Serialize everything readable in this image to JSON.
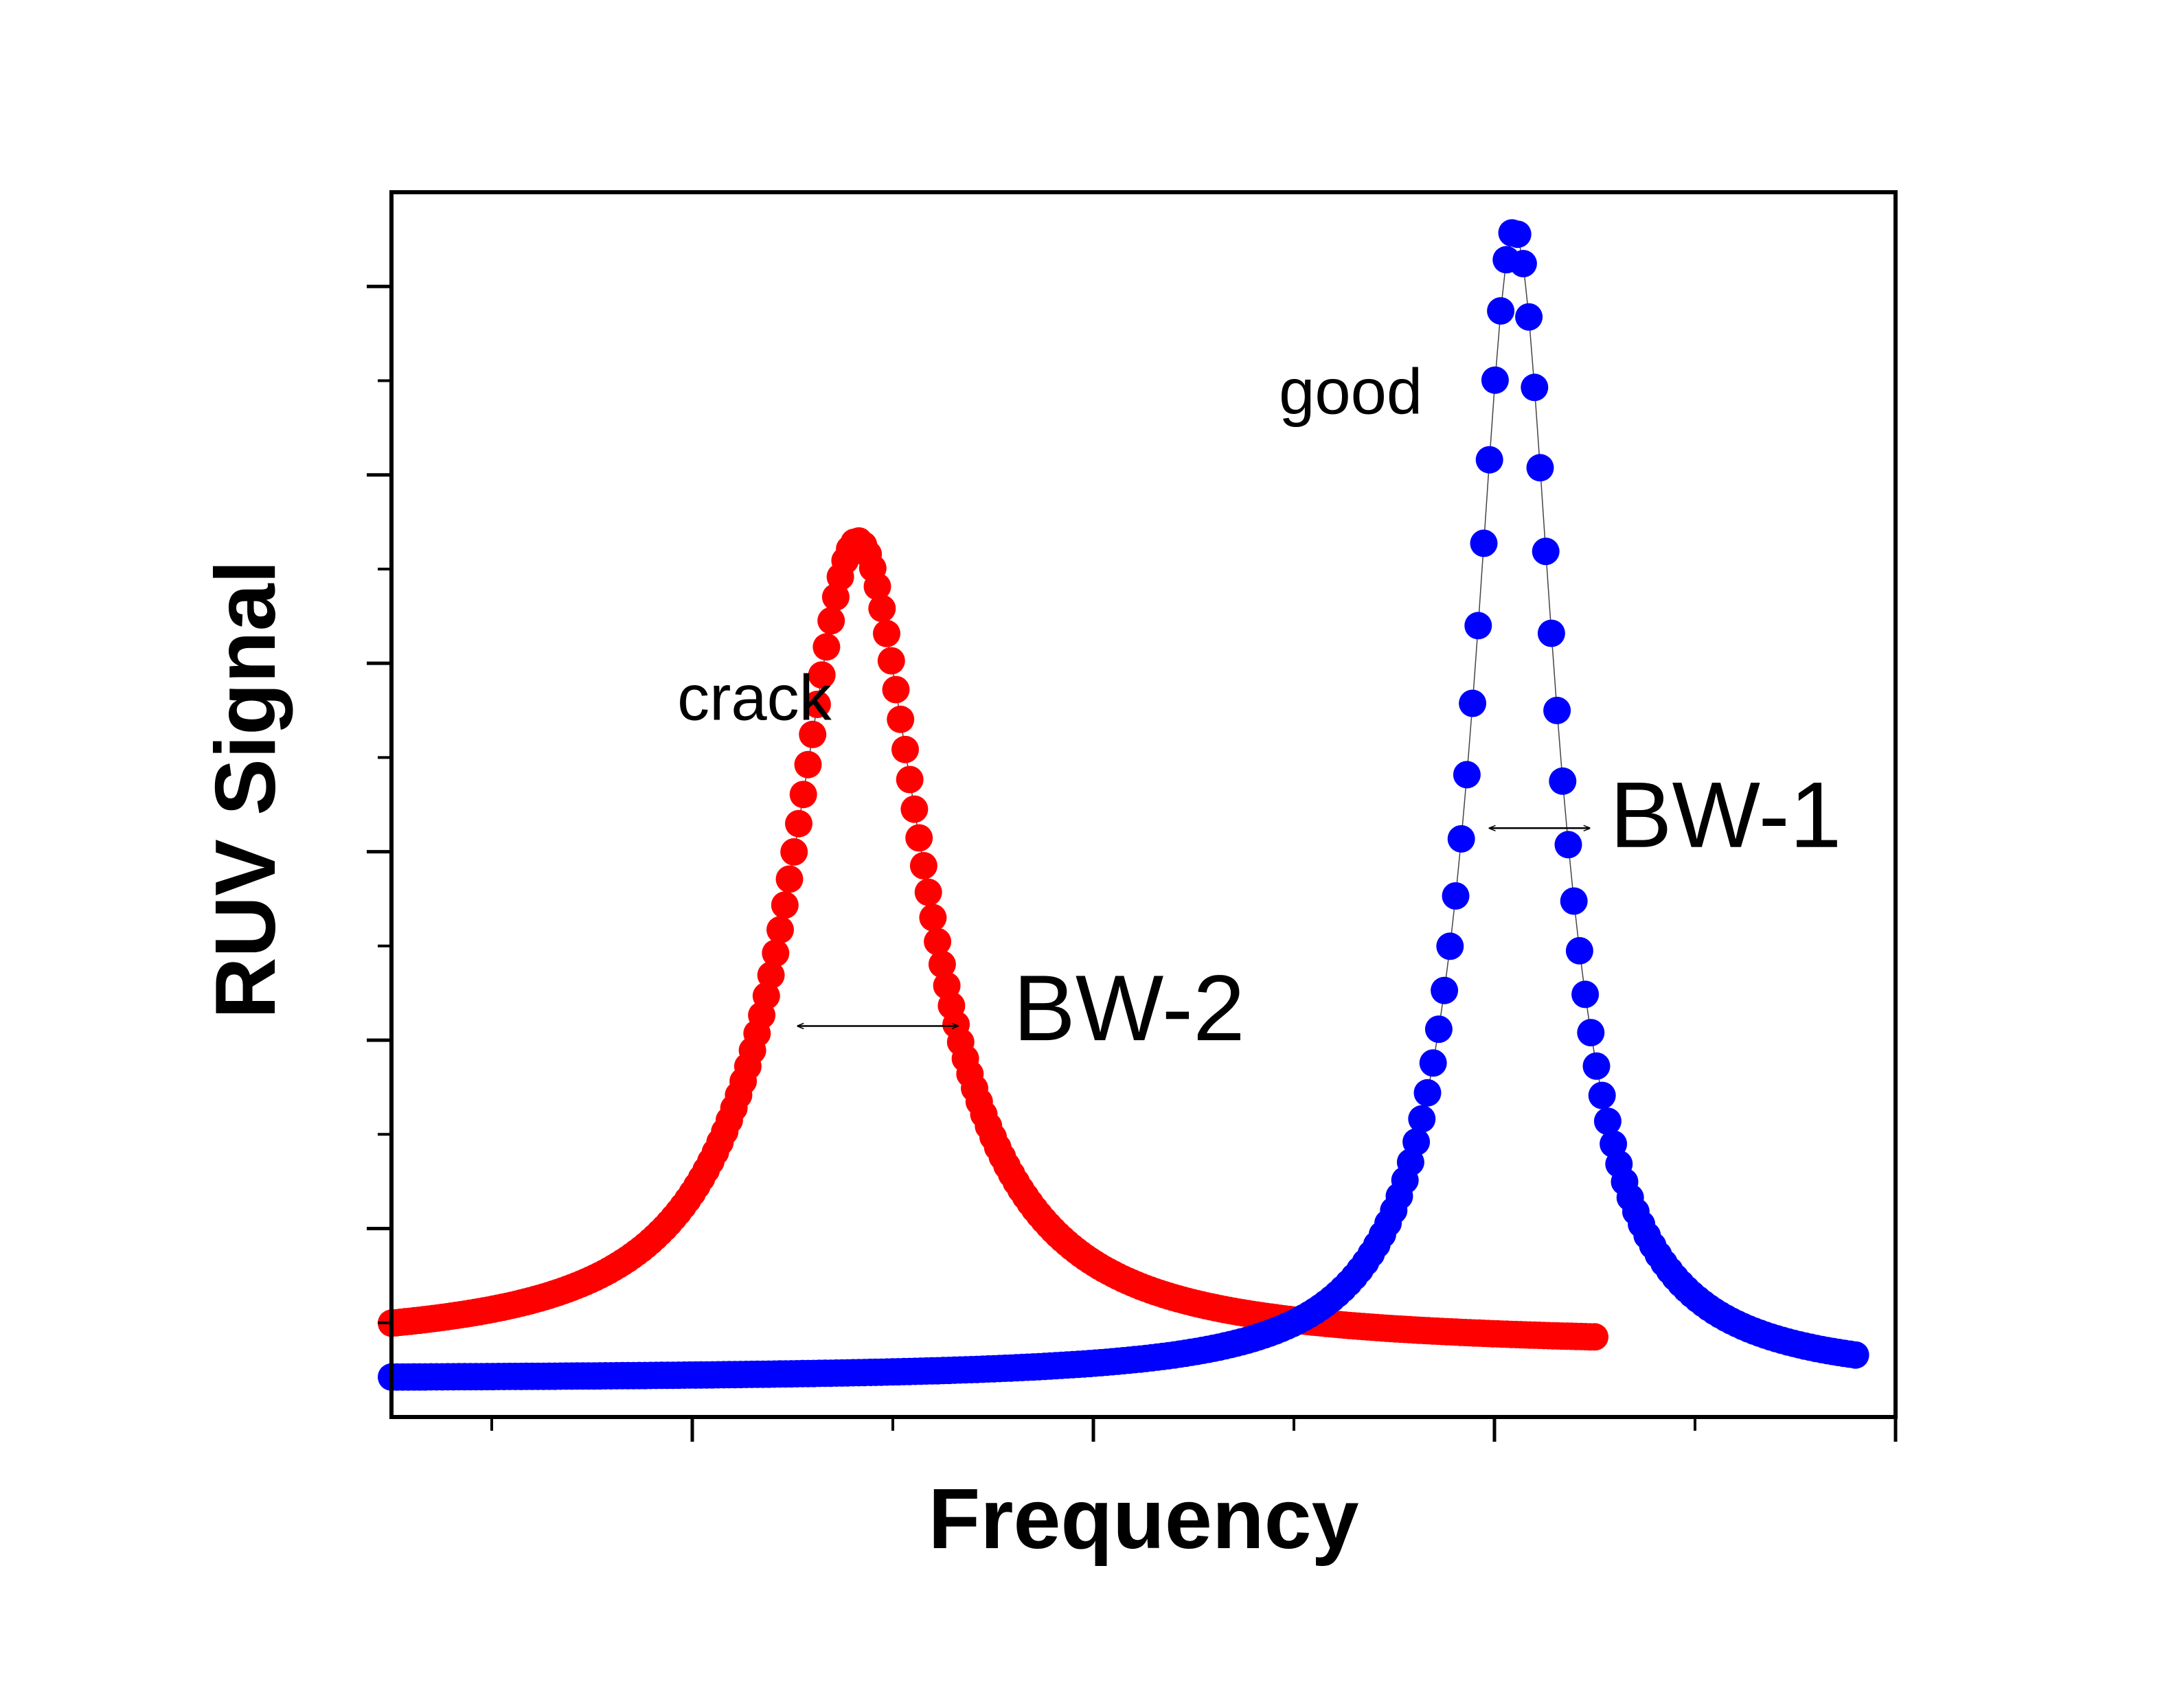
{
  "chart_data": {
    "type": "scatter",
    "xlabel": "Frequency",
    "ylabel": "RUV Signal",
    "xlim": [
      0,
      15
    ],
    "ylim": [
      0,
      13
    ],
    "grid": false,
    "legend": "none",
    "x_ticks": {
      "major": [
        3,
        7,
        11,
        15
      ],
      "minor": [
        1,
        5,
        9,
        13
      ]
    },
    "y_ticks": {
      "major": [
        2,
        4,
        6,
        8,
        10,
        12
      ],
      "minor": [
        1,
        3,
        5,
        7,
        9,
        11
      ]
    },
    "series": [
      {
        "color": "#ff0000",
        "peak_x": 4.65,
        "peak_y": 9.3,
        "half_width": 0.8,
        "x_range": [
          0,
          12
        ],
        "baseline_y": 0.75
      },
      {
        "color": "#0000ff",
        "peak_x": 11.2,
        "peak_y": 12.6,
        "half_width": 0.5,
        "x_range": [
          0,
          14.6
        ],
        "baseline_y": 0.4
      }
    ],
    "annotations": [
      {
        "text": "crack",
        "x": 2.85,
        "y": 7.4
      },
      {
        "text": "good",
        "x": 8.85,
        "y": 10.65
      },
      {
        "text": "BW-2",
        "x": 6.2,
        "y": 4.0
      },
      {
        "text": "BW-1",
        "x": 12.15,
        "y": 6.05
      }
    ],
    "bandwidth_markers": [
      {
        "label": "BW-2",
        "x1": 4.05,
        "x2": 5.65,
        "y": 4.15
      },
      {
        "label": "BW-1",
        "x1": 10.95,
        "x2": 11.95,
        "y": 6.25
      }
    ]
  }
}
